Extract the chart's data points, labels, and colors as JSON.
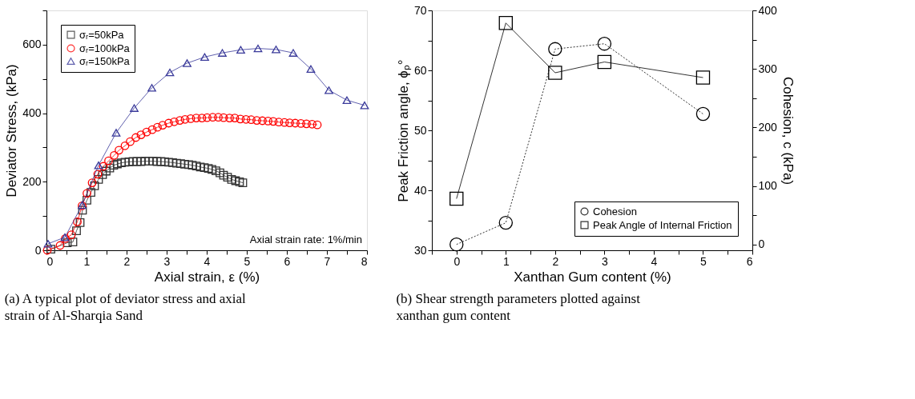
{
  "chart_data": [
    {
      "type": "line",
      "title": "(a) A typical plot of deviator stress and axial strain of Al-Sharqia Sand",
      "xlabel": "Axial strain, ε (%)",
      "ylabel": "Deviator Stress, (kPa)",
      "xlim": [
        0,
        8
      ],
      "ylim": [
        0,
        700
      ],
      "xticks": [
        0,
        {
          "value": 0.5,
          "label": null
        },
        1,
        {
          "value": 1.5,
          "label": null
        },
        2,
        {
          "value": 2.5,
          "label": null
        },
        3,
        {
          "value": 3.5,
          "label": null
        },
        4,
        {
          "value": 4.5,
          "label": null
        },
        5,
        {
          "value": 5.5,
          "label": null
        },
        6,
        {
          "value": 6.5,
          "label": null
        },
        7,
        {
          "value": 7.5,
          "label": null
        },
        8
      ],
      "yticks": [
        0,
        {
          "value": 100,
          "label": null
        },
        200,
        {
          "value": 300,
          "label": null
        },
        400,
        {
          "value": 500,
          "label": null
        },
        600,
        {
          "value": 700,
          "label": null
        }
      ],
      "legend": "top left",
      "grid": false,
      "annotations": [
        "Axial strain rate: 1%/min"
      ],
      "series": [
        {
          "name": "σᵣ=50kPa",
          "color": "#333333",
          "marker": "square",
          "line_style": "solid",
          "x": [
            0.11,
            0.52,
            0.66,
            0.75,
            0.84,
            0.9,
            1.01,
            1.11,
            1.2,
            1.3,
            1.4,
            1.49,
            1.58,
            1.68,
            1.77,
            1.87,
            1.96,
            2.06,
            2.16,
            2.26,
            2.36,
            2.46,
            2.56,
            2.66,
            2.76,
            2.86,
            2.95,
            3.05,
            3.15,
            3.25,
            3.35,
            3.45,
            3.55,
            3.64,
            3.74,
            3.84,
            3.94,
            4.04,
            4.13,
            4.23,
            4.33,
            4.42,
            4.52,
            4.62,
            4.72,
            4.82,
            4.9
          ],
          "values": [
            3,
            22,
            24,
            57,
            81,
            117,
            146,
            169,
            188,
            207,
            221,
            231,
            240,
            248,
            252,
            255,
            257,
            258,
            259,
            259,
            259,
            260,
            260,
            260,
            259,
            259,
            258,
            257,
            256,
            254,
            253,
            251,
            250,
            248,
            246,
            243,
            241,
            239,
            236,
            232,
            226,
            219,
            213,
            207,
            203,
            200,
            197
          ]
        },
        {
          "name": "σᵣ=100kPa",
          "color": "#ff0000",
          "marker": "circle",
          "line_style": "solid",
          "x": [
            0.02,
            0.34,
            0.47,
            0.62,
            0.77,
            0.89,
            1.01,
            1.14,
            1.28,
            1.42,
            1.55,
            1.69,
            1.81,
            1.96,
            2.09,
            2.23,
            2.36,
            2.5,
            2.64,
            2.77,
            2.9,
            3.05,
            3.19,
            3.33,
            3.46,
            3.6,
            3.74,
            3.88,
            4.01,
            4.15,
            4.29,
            4.42,
            4.57,
            4.7,
            4.84,
            4.98,
            5.11,
            5.25,
            5.39,
            5.53,
            5.66,
            5.8,
            5.94,
            6.07,
            6.21,
            6.35,
            6.49,
            6.63,
            6.76
          ],
          "values": [
            0,
            14,
            34,
            45,
            83,
            130,
            166,
            197,
            222,
            245,
            261,
            277,
            292,
            305,
            317,
            329,
            337,
            345,
            352,
            359,
            365,
            371,
            375,
            379,
            382,
            384,
            386,
            386,
            387,
            388,
            388,
            387,
            386,
            386,
            383,
            382,
            381,
            379,
            378,
            377,
            376,
            374,
            373,
            372,
            371,
            370,
            369,
            368,
            366
          ]
        },
        {
          "name": "σᵣ=150kPa",
          "color": "#3a3a9a",
          "marker": "triangle",
          "line_style": "solid",
          "x": [
            0.04,
            0.46,
            0.89,
            1.3,
            1.74,
            2.19,
            2.63,
            3.08,
            3.51,
            3.95,
            4.39,
            4.85,
            5.28,
            5.73,
            6.16,
            6.6,
            7.05,
            7.5,
            7.94
          ],
          "values": [
            19,
            38,
            132,
            248,
            343,
            415,
            474,
            519,
            546,
            564,
            576,
            585,
            589,
            586,
            576,
            529,
            467,
            438,
            423
          ]
        }
      ]
    },
    {
      "type": "line",
      "title": "(b) Shear strength parameters plotted against xanthan gum content",
      "xlabel": "Xanthan Gum content (%)",
      "ylabel": "Peak Friction angle, ϕₚ°",
      "y2label": "Cohesion, c (kPa)",
      "xlim": [
        -0.5,
        6
      ],
      "ylim": [
        30,
        70
      ],
      "y2lim": [
        -10,
        400
      ],
      "xticks": [
        {
          "value": -0.5,
          "label": null
        },
        0,
        {
          "value": 0.5,
          "label": null
        },
        1,
        {
          "value": 1.5,
          "label": null
        },
        2,
        {
          "value": 2.5,
          "label": null
        },
        3,
        {
          "value": 3.5,
          "label": null
        },
        4,
        {
          "value": 4.5,
          "label": null
        },
        5,
        {
          "value": 5.5,
          "label": null
        },
        6
      ],
      "yticks": [
        30,
        {
          "value": 35,
          "label": null
        },
        40,
        {
          "value": 45,
          "label": null
        },
        50,
        {
          "value": 55,
          "label": null
        },
        60,
        {
          "value": 65,
          "label": null
        },
        70
      ],
      "y2ticks": [
        0,
        {
          "value": 50,
          "label": null
        },
        100,
        {
          "value": 150,
          "label": null
        },
        200,
        {
          "value": 250,
          "label": null
        },
        300,
        {
          "value": 350,
          "label": null
        },
        400
      ],
      "legend": "bottom right",
      "grid": false,
      "series": [
        {
          "name": "Cohesion",
          "color": "#000000",
          "marker": "circle",
          "line_style": "dotted",
          "axis": "y2",
          "x": [
            0,
            1,
            2,
            3,
            5
          ],
          "values": [
            0,
            37,
            334,
            343,
            223
          ]
        },
        {
          "name": "Peak Angle of Internal Friction",
          "color": "#000000",
          "marker": "square",
          "line_style": "solid",
          "x": [
            0,
            1,
            2,
            3,
            5
          ],
          "values": [
            38.6,
            67.9,
            59.6,
            61.4,
            58.8
          ]
        }
      ]
    }
  ]
}
